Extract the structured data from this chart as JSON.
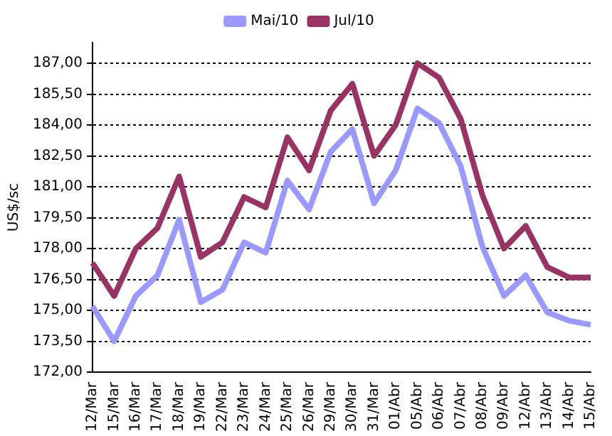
{
  "chart_data": {
    "type": "line",
    "ylabel": "US$/sc",
    "categories": [
      "12/Mar",
      "15/Mar",
      "16/Mar",
      "17/Mar",
      "18/Mar",
      "19/Mar",
      "22/Mar",
      "23/Mar",
      "24/Mar",
      "25/Mar",
      "26/Mar",
      "29/Mar",
      "30/Mar",
      "31/Mar",
      "01/Abr",
      "05/Abr",
      "06/Abr",
      "07/Abr",
      "08/Abr",
      "09/Abr",
      "12/Abr",
      "13/Abr",
      "14/Abr",
      "15/Abr"
    ],
    "series": [
      {
        "name": "Mai/10",
        "color": "#9999ff",
        "values": [
          175.2,
          173.5,
          175.7,
          176.7,
          179.4,
          175.4,
          176.0,
          178.3,
          177.8,
          181.3,
          179.9,
          182.7,
          183.8,
          180.2,
          181.8,
          184.8,
          184.1,
          182.0,
          178.1,
          175.7,
          176.7,
          174.9,
          174.5,
          174.3
        ]
      },
      {
        "name": "Jul/10",
        "color": "#993366",
        "values": [
          177.3,
          175.7,
          178.0,
          179.0,
          181.5,
          177.6,
          178.3,
          180.5,
          180.0,
          183.4,
          181.8,
          184.7,
          186.0,
          182.5,
          184.0,
          187.0,
          186.3,
          184.3,
          180.6,
          178.0,
          179.1,
          177.1,
          176.6,
          176.6
        ]
      }
    ],
    "ylim": [
      172,
      188
    ],
    "yticks": [
      {
        "value": 172,
        "label": "172,00"
      },
      {
        "value": 173.5,
        "label": "173,50"
      },
      {
        "value": 175,
        "label": "175,00"
      },
      {
        "value": 176.5,
        "label": "176,50"
      },
      {
        "value": 178,
        "label": "178,00"
      },
      {
        "value": 179.5,
        "label": "179,50"
      },
      {
        "value": 181,
        "label": "181,00"
      },
      {
        "value": 182.5,
        "label": "182,50"
      },
      {
        "value": 184,
        "label": "184,00"
      },
      {
        "value": 185.5,
        "label": "185,50"
      },
      {
        "value": 187,
        "label": "187,00"
      }
    ],
    "grid": "y",
    "legend": "top",
    "marker": "none",
    "line_style": "solid"
  }
}
